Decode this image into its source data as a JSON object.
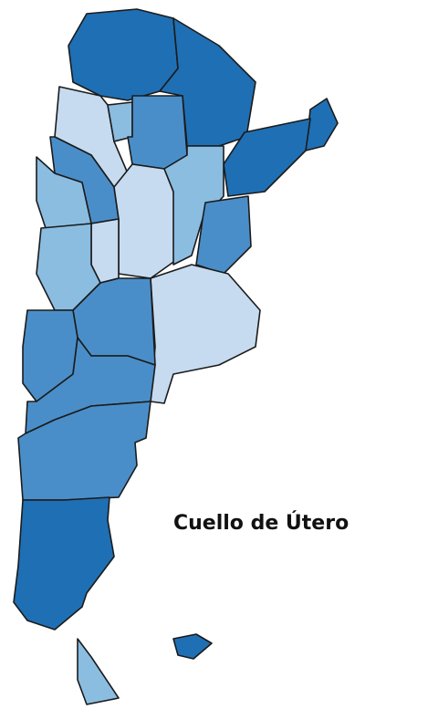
{
  "title": "Cuello de Útero"
}
